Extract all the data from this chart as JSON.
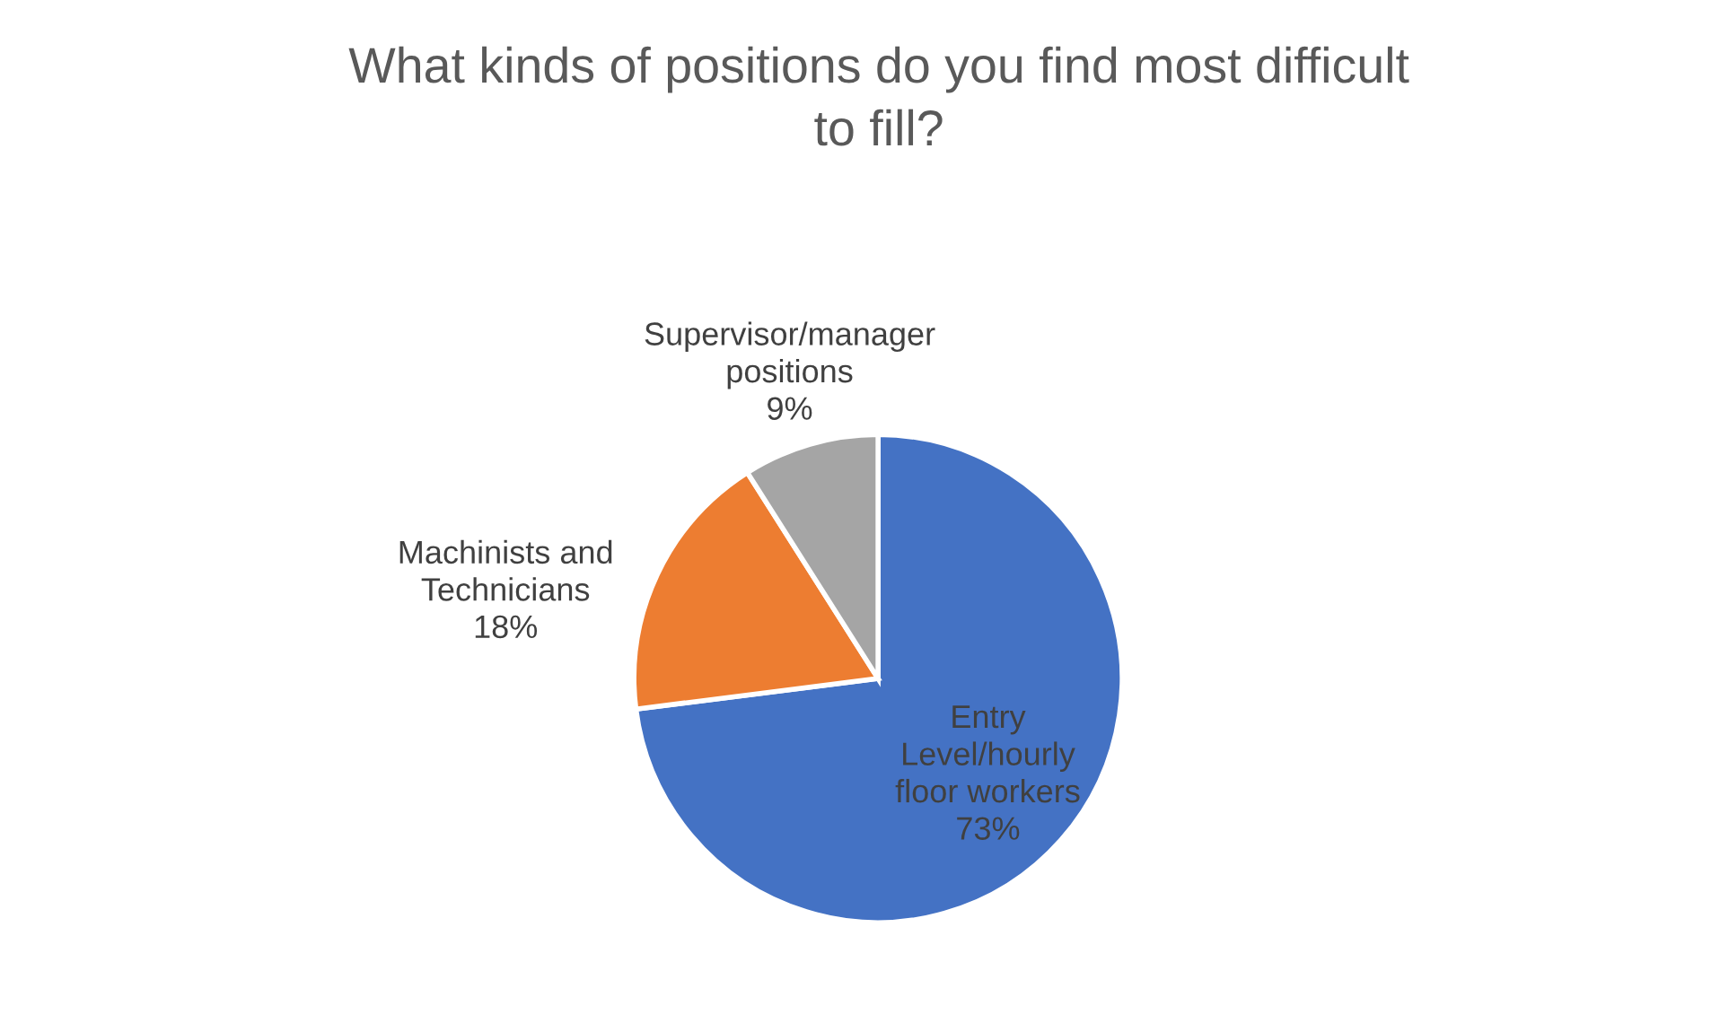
{
  "chart_data": {
    "type": "pie",
    "title": "What kinds of positions do you find most difficult\nto fill?",
    "categories": [
      "Entry\nLevel/hourly\nfloor workers",
      "Machinists and\nTechnicians",
      "Supervisor/manager\npositions"
    ],
    "values": [
      73,
      18,
      9
    ],
    "colors": [
      "#4472c4",
      "#ed7d31",
      "#a5a5a5"
    ],
    "value_labels": [
      "73%",
      "18%",
      "9%"
    ],
    "legend": false
  }
}
